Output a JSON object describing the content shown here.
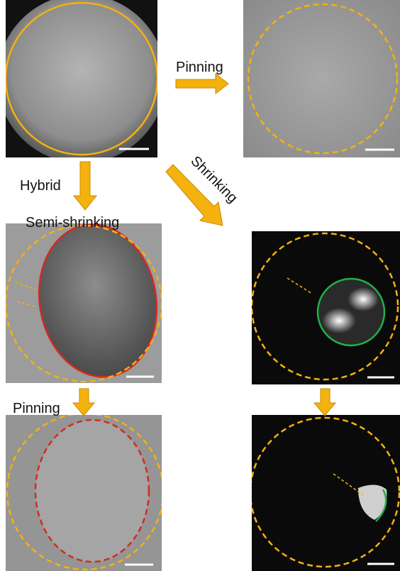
{
  "annotations": [
    "Pinning",
    "Hybrid",
    "Shrinking",
    "Semi-shrinking",
    "Pinning"
  ]
}
